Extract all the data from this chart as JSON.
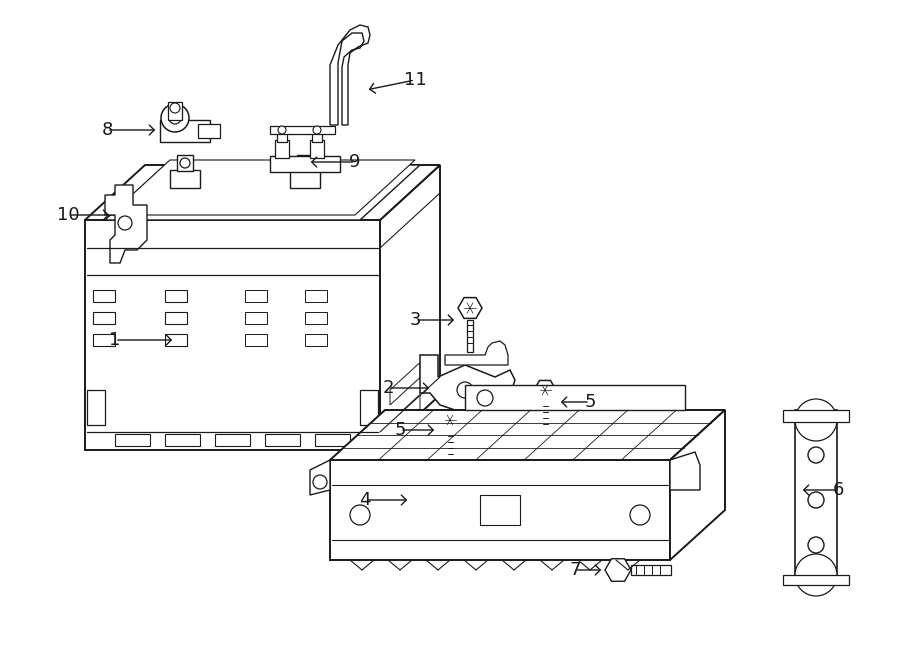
{
  "bg_color": "#ffffff",
  "fig_width": 9.0,
  "fig_height": 6.62,
  "dpi": 100,
  "line_color": "#1a1a1a",
  "label_fontsize": 13
}
